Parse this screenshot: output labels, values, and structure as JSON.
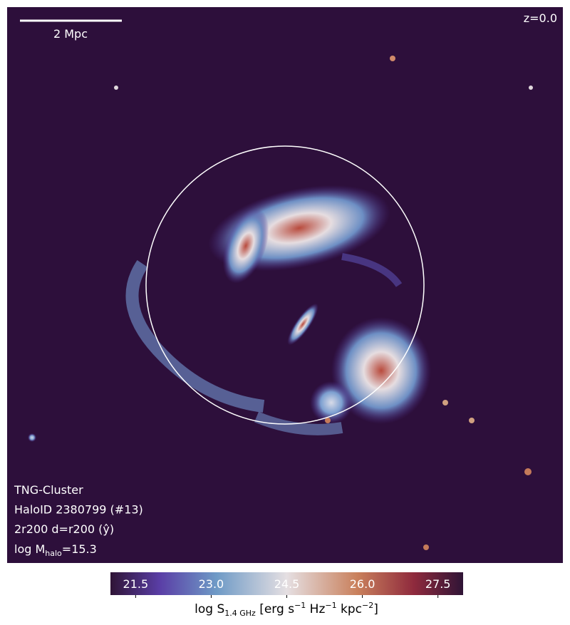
{
  "image": {
    "scale_bar_label": "2 Mpc",
    "redshift_label": "z=0.0",
    "info_lines": [
      "TNG-Cluster",
      "HaloID 2380799 (#13)",
      "2r200 d=r200 (ŷ)"
    ],
    "mass_label": [
      "log M",
      "halo",
      "=15.3"
    ]
  },
  "colorbar": {
    "lim": [
      21.0,
      28.0
    ],
    "ticks": [
      21.5,
      {
        "value": 23,
        "label": "23.0"
      },
      24.5,
      {
        "value": 26,
        "label": "26.0"
      },
      27.5
    ],
    "label": [
      "log S",
      "1.4 GHz",
      " [erg s",
      "−1",
      " Hz",
      "−1",
      " kpc",
      "−2",
      "]"
    ]
  }
}
